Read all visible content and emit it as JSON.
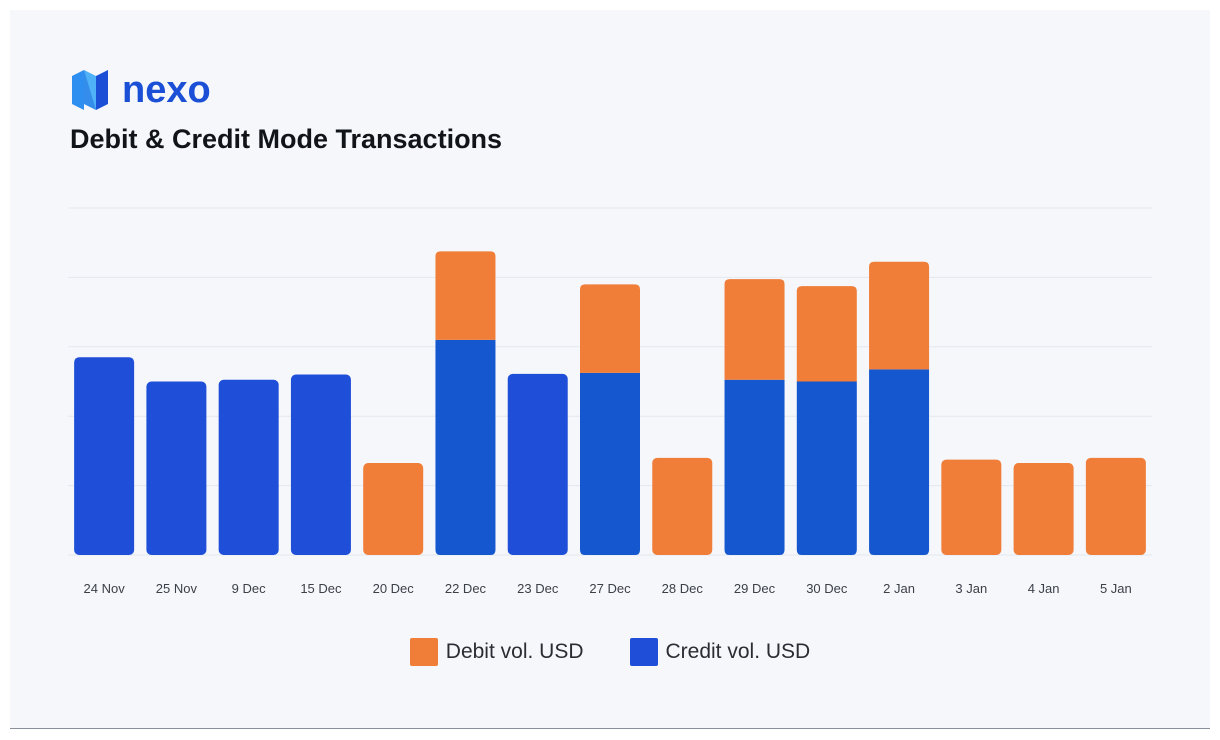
{
  "brand": {
    "name": "nexo",
    "logo_icon": "nexo-logo-icon"
  },
  "colors": {
    "debit": "#f07d38",
    "credit": "#1f4fd8",
    "credit_alt": "#1557cf",
    "grid": "#e4e7ee"
  },
  "chart_data": {
    "type": "bar",
    "stacked": true,
    "title": "Debit & Credit Mode Transactions",
    "xlabel": "",
    "ylabel": "",
    "ylim": [
      0,
      100
    ],
    "y_tick_labels_shown": false,
    "grid": true,
    "legend_placement": "bottom-center",
    "categories": [
      "24 Nov",
      "25 Nov",
      "9 Dec",
      "15 Dec",
      "20 Dec",
      "22 Dec",
      "23 Dec",
      "27 Dec",
      "28 Dec",
      "29 Dec",
      "30 Dec",
      "2 Jan",
      "3 Jan",
      "4 Jan",
      "5 Jan"
    ],
    "series": [
      {
        "name": "Credit vol. USD",
        "values": [
          57,
          50,
          50.5,
          52,
          0,
          62,
          52.2,
          52.5,
          0,
          50.5,
          50,
          53.5,
          0,
          0,
          0
        ]
      },
      {
        "name": "Debit vol. USD",
        "values": [
          0,
          0,
          0,
          0,
          26.5,
          25.5,
          0,
          25.5,
          28,
          29,
          27.5,
          31,
          27.5,
          26.5,
          28
        ]
      }
    ]
  },
  "legend": [
    {
      "label": "Debit vol. USD",
      "color": "#f07d38"
    },
    {
      "label": "Credit vol. USD",
      "color": "#1f4fd8"
    }
  ]
}
